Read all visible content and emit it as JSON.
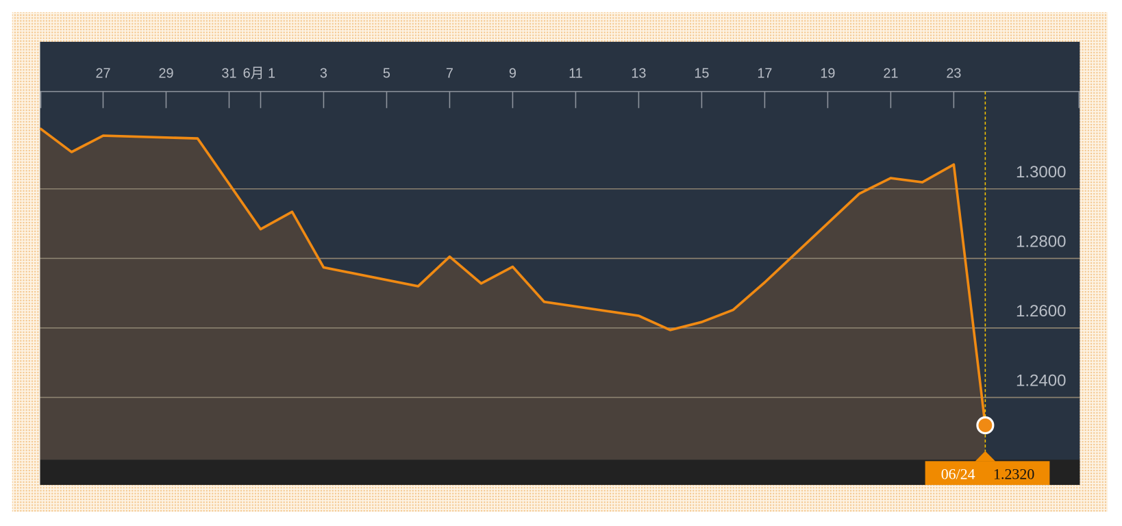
{
  "chart_data": {
    "type": "area-line",
    "x": [
      "05/25",
      "05/26",
      "05/27",
      "05/30",
      "06/01",
      "06/02",
      "06/03",
      "06/06",
      "06/07",
      "06/08",
      "06/09",
      "06/10",
      "06/13",
      "06/14",
      "06/15",
      "06/16",
      "06/17",
      "06/20",
      "06/21",
      "06/22",
      "06/23",
      "06/24"
    ],
    "series": [
      {
        "color": "#f08a13",
        "values": [
          1.3174,
          1.3106,
          1.3153,
          1.3145,
          1.2884,
          1.2934,
          1.2774,
          1.272,
          1.2805,
          1.2728,
          1.2776,
          1.2675,
          1.2635,
          1.2594,
          1.2617,
          1.2652,
          1.2731,
          1.2986,
          1.3031,
          1.3019,
          1.307,
          1.232
        ],
        "value_labels": [
          null,
          null,
          null,
          null,
          null,
          null,
          null,
          null,
          null,
          null,
          null,
          null,
          null,
          null,
          null,
          null,
          null,
          null,
          null,
          null,
          null,
          "1.2320"
        ]
      }
    ],
    "xlim": [
      "05/25",
      "06/27"
    ],
    "xticks": [
      {
        "value": "05/27",
        "label": "27"
      },
      {
        "value": "05/29",
        "label": "29"
      },
      {
        "value": "05/31",
        "label": "31"
      },
      {
        "value": "06/01",
        "label": "6月 1"
      },
      {
        "value": "06/03",
        "label": "3"
      },
      {
        "value": "06/05",
        "label": "5"
      },
      {
        "value": "06/07",
        "label": "7"
      },
      {
        "value": "06/09",
        "label": "9"
      },
      {
        "value": "06/11",
        "label": "11"
      },
      {
        "value": "06/13",
        "label": "13"
      },
      {
        "value": "06/15",
        "label": "15"
      },
      {
        "value": "06/17",
        "label": "17"
      },
      {
        "value": "06/19",
        "label": "19"
      },
      {
        "value": "06/21",
        "label": "21"
      },
      {
        "value": "06/23",
        "label": "23"
      }
    ],
    "ylim": [
      1.2221,
      1.3423
    ],
    "yticks": [
      {
        "value": 1.24,
        "label": "1.2400"
      },
      {
        "value": 1.26,
        "label": "1.2600"
      },
      {
        "value": 1.28,
        "label": "1.2800"
      },
      {
        "value": 1.3,
        "label": "1.3000"
      }
    ],
    "grid": true,
    "highlight_index": 21
  }
}
